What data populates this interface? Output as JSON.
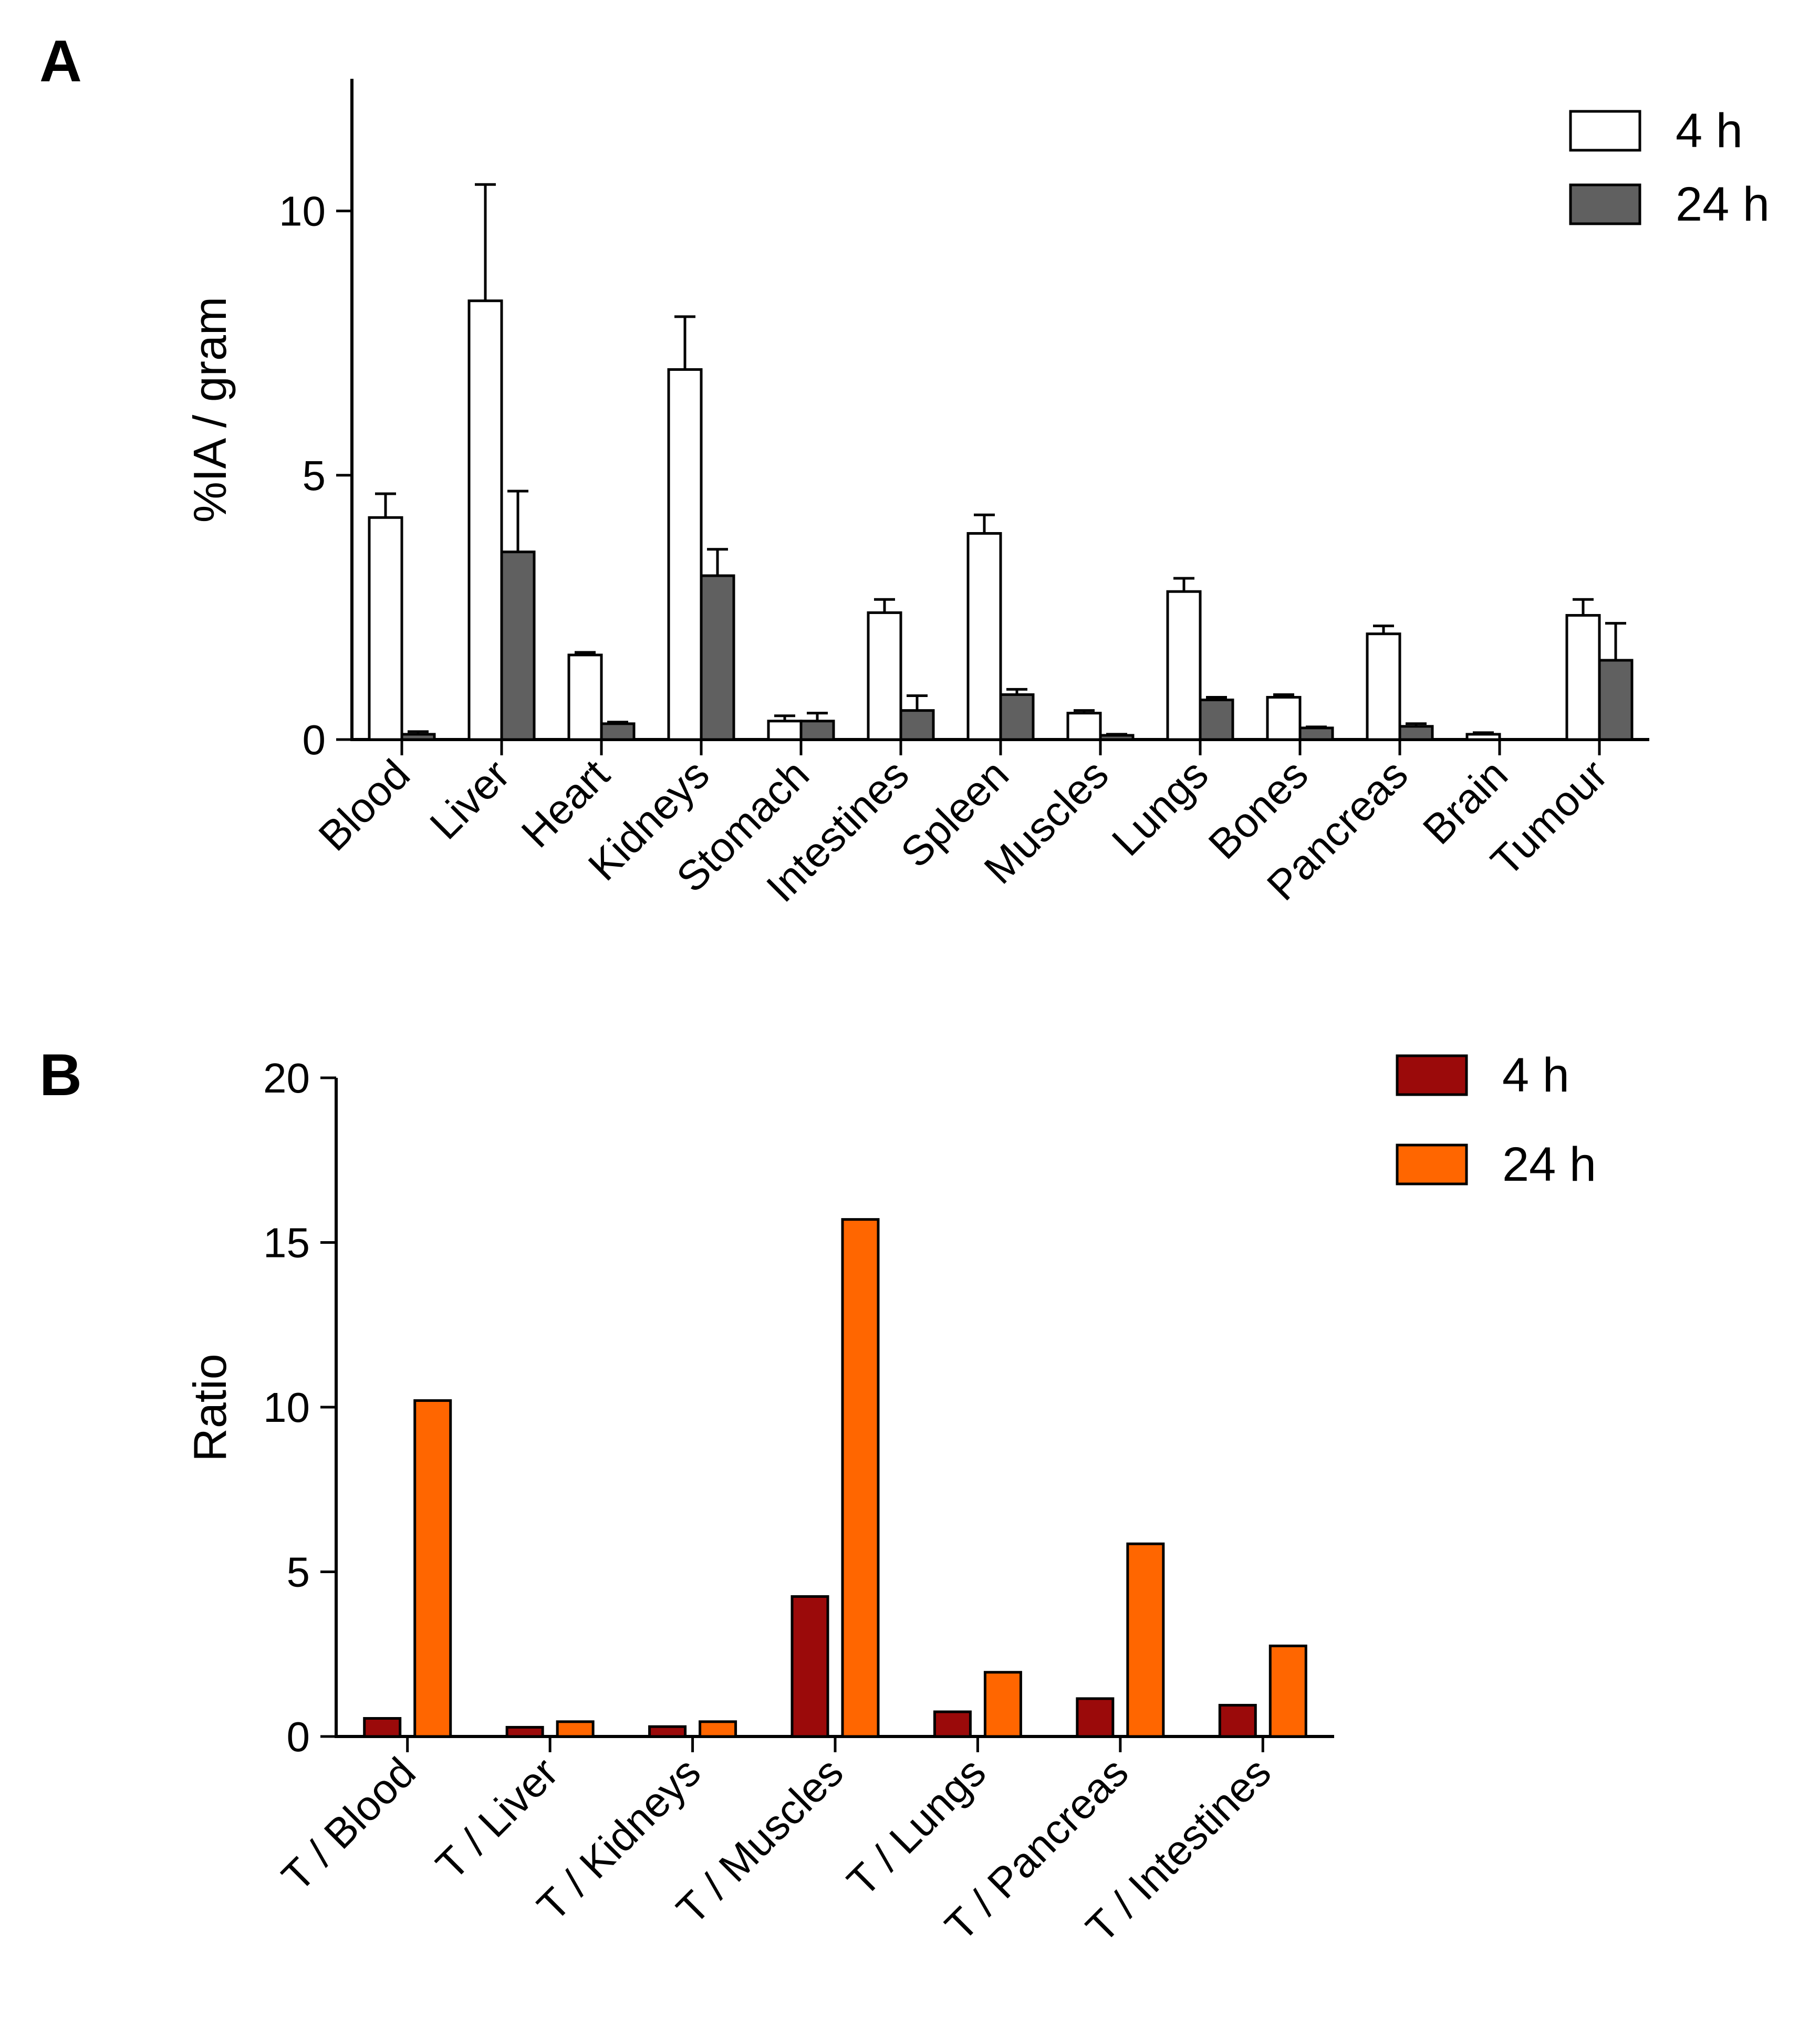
{
  "panels": [
    {
      "label": "A"
    },
    {
      "label": "B"
    }
  ],
  "chart_data": [
    {
      "type": "bar",
      "title": "",
      "xlabel": "",
      "ylabel": "%IA / gram",
      "ylim": [
        0,
        12.5
      ],
      "yticks": [
        0,
        5,
        10
      ],
      "grid": false,
      "legend": "top-right",
      "categories": [
        "Blood",
        "Liver",
        "Heart",
        "Kidneys",
        "Stomach",
        "Intestines",
        "Spleen",
        "Muscles",
        "Lungs",
        "Bones",
        "Pancreas",
        "Brain",
        "Tumour"
      ],
      "series": [
        {
          "name": "4 h",
          "color": "#ffffff",
          "values": [
            4.2,
            8.3,
            1.6,
            7.0,
            0.35,
            2.4,
            3.9,
            0.5,
            2.8,
            0.8,
            2.0,
            0.1,
            2.35
          ],
          "errors": [
            0.45,
            2.2,
            0.05,
            1.0,
            0.1,
            0.25,
            0.35,
            0.05,
            0.25,
            0.05,
            0.15,
            0.03,
            0.3
          ]
        },
        {
          "name": "24 h",
          "color": "#606060",
          "values": [
            0.1,
            3.55,
            0.3,
            3.1,
            0.35,
            0.55,
            0.85,
            0.08,
            0.75,
            0.22,
            0.25,
            0.0,
            1.5
          ],
          "errors": [
            0.05,
            1.15,
            0.03,
            0.5,
            0.15,
            0.28,
            0.1,
            0.02,
            0.05,
            0.02,
            0.05,
            0.0,
            0.7
          ]
        }
      ]
    },
    {
      "type": "bar",
      "title": "",
      "xlabel": "",
      "ylabel": "Ratio",
      "ylim": [
        0,
        20
      ],
      "yticks": [
        0,
        5,
        10,
        15,
        20
      ],
      "grid": false,
      "legend": "top-right",
      "categories": [
        "T / Blood",
        "T / Liver",
        "T / Kidneys",
        "T / Muscles",
        "T / Lungs",
        "T / Pancreas",
        "T / Intestines"
      ],
      "series": [
        {
          "name": "4 h",
          "color": "#9b0a0a",
          "values": [
            0.55,
            0.28,
            0.3,
            4.25,
            0.75,
            1.15,
            0.95
          ]
        },
        {
          "name": "24 h",
          "color": "#ff6600",
          "values": [
            10.2,
            0.45,
            0.45,
            15.7,
            1.95,
            5.85,
            2.75
          ]
        }
      ]
    }
  ]
}
